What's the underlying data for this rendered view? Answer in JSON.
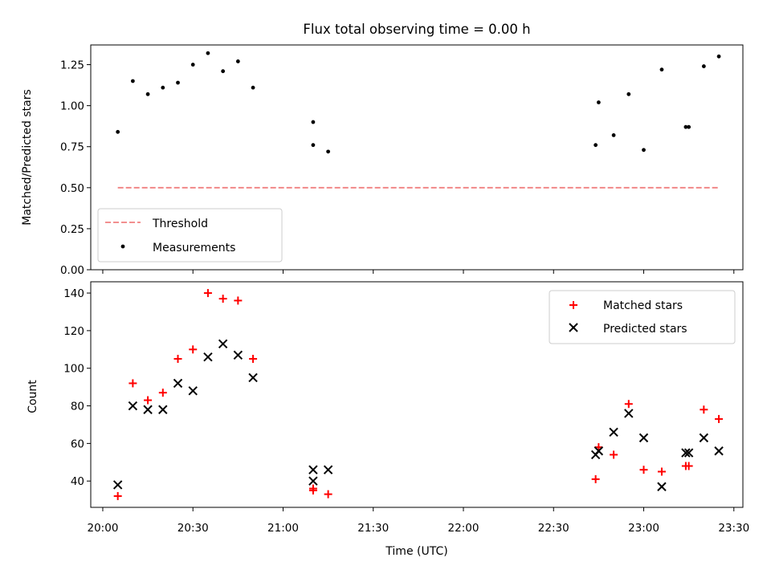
{
  "chart_data": [
    {
      "type": "scatter",
      "title": "Flux total observing time = 0.00 h",
      "xlabel": "",
      "ylabel": "Matched/Predicted stars",
      "ylim": [
        0,
        1.37
      ],
      "xlim": [
        "19:56",
        "23:33"
      ],
      "yticks": [
        "0.00",
        "0.25",
        "0.50",
        "0.75",
        "1.00",
        "1.25"
      ],
      "grid": false,
      "legend_position": "lower-left",
      "threshold": {
        "name": "Threshold",
        "value": 0.5,
        "x": [
          "20:05",
          "23:25"
        ],
        "color": "#f08080"
      },
      "series": [
        {
          "name": "Measurements",
          "color": "#000000",
          "points": [
            [
              "20:05",
              0.84
            ],
            [
              "20:10",
              1.15
            ],
            [
              "20:15",
              1.07
            ],
            [
              "20:20",
              1.11
            ],
            [
              "20:25",
              1.14
            ],
            [
              "20:30",
              1.25
            ],
            [
              "20:35",
              1.32
            ],
            [
              "20:40",
              1.21
            ],
            [
              "20:45",
              1.27
            ],
            [
              "20:50",
              1.11
            ],
            [
              "21:10",
              0.9
            ],
            [
              "21:10",
              0.76
            ],
            [
              "21:15",
              0.72
            ],
            [
              "22:44",
              0.76
            ],
            [
              "22:45",
              1.02
            ],
            [
              "22:50",
              0.82
            ],
            [
              "22:55",
              1.07
            ],
            [
              "23:00",
              0.73
            ],
            [
              "23:06",
              1.22
            ],
            [
              "23:14",
              0.87
            ],
            [
              "23:15",
              0.87
            ],
            [
              "23:20",
              1.24
            ],
            [
              "23:25",
              1.3
            ]
          ]
        }
      ]
    },
    {
      "type": "scatter",
      "title": "",
      "xlabel": "Time (UTC)",
      "ylabel": "Count",
      "ylim": [
        26,
        146
      ],
      "xlim": [
        "19:56",
        "23:33"
      ],
      "xticks": [
        "20:00",
        "20:30",
        "21:00",
        "21:30",
        "22:00",
        "22:30",
        "23:00",
        "23:30"
      ],
      "yticks": [
        "40",
        "60",
        "80",
        "100",
        "120",
        "140"
      ],
      "grid": false,
      "legend_position": "top-right",
      "series": [
        {
          "name": "Matched stars",
          "marker": "plus",
          "color": "#ff0000",
          "points": [
            [
              "20:05",
              32
            ],
            [
              "20:10",
              92
            ],
            [
              "20:15",
              83
            ],
            [
              "20:20",
              87
            ],
            [
              "20:25",
              105
            ],
            [
              "20:30",
              110
            ],
            [
              "20:35",
              140
            ],
            [
              "20:40",
              137
            ],
            [
              "20:45",
              136
            ],
            [
              "20:50",
              105
            ],
            [
              "21:10",
              36
            ],
            [
              "21:10",
              35
            ],
            [
              "21:15",
              33
            ],
            [
              "22:44",
              41
            ],
            [
              "22:45",
              58
            ],
            [
              "22:50",
              54
            ],
            [
              "22:55",
              81
            ],
            [
              "23:00",
              46
            ],
            [
              "23:06",
              45
            ],
            [
              "23:14",
              48
            ],
            [
              "23:15",
              48
            ],
            [
              "23:20",
              78
            ],
            [
              "23:25",
              73
            ]
          ]
        },
        {
          "name": "Predicted stars",
          "marker": "x",
          "color": "#000000",
          "points": [
            [
              "20:05",
              38
            ],
            [
              "20:10",
              80
            ],
            [
              "20:15",
              78
            ],
            [
              "20:20",
              78
            ],
            [
              "20:25",
              92
            ],
            [
              "20:30",
              88
            ],
            [
              "20:35",
              106
            ],
            [
              "20:40",
              113
            ],
            [
              "20:45",
              107
            ],
            [
              "20:50",
              95
            ],
            [
              "21:10",
              46
            ],
            [
              "21:10",
              40
            ],
            [
              "21:15",
              46
            ],
            [
              "22:44",
              54
            ],
            [
              "22:45",
              56
            ],
            [
              "22:50",
              66
            ],
            [
              "22:55",
              76
            ],
            [
              "23:00",
              63
            ],
            [
              "23:06",
              37
            ],
            [
              "23:14",
              55
            ],
            [
              "23:15",
              55
            ],
            [
              "23:20",
              63
            ],
            [
              "23:25",
              56
            ]
          ]
        }
      ]
    }
  ]
}
